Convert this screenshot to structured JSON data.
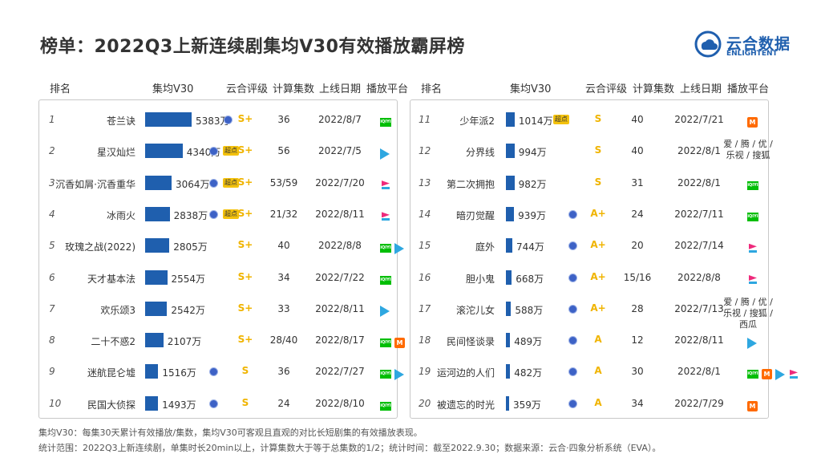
{
  "title": "榜单：2022Q3上新连续剧集均V30有效播放霸屏榜",
  "logo": {
    "cn": "云合数据",
    "en": "ENLIGHTENT"
  },
  "headers": {
    "rank": "排名",
    "v30": "集均V30",
    "grade": "云合评级",
    "episodes": "计算集数",
    "date": "上线日期",
    "platform": "播放平台"
  },
  "chart_data": {
    "type": "bar",
    "unit": "万",
    "colors": {
      "bar": "#1f5fae",
      "grade": "#f0b400",
      "net_badge": "#3d62c6",
      "chao_badge": "#f4c20d"
    },
    "rows": [
      {
        "rank": "1",
        "name": "苍兰诀",
        "value": 5383,
        "label": "5383万",
        "net": true,
        "chao": false,
        "grade": "S+",
        "episodes": "36",
        "date": "2022/8/7",
        "platforms": [
          "iqiyi"
        ]
      },
      {
        "rank": "2",
        "name": "星汉灿烂",
        "value": 4340,
        "label": "4340万",
        "net": true,
        "chao": true,
        "grade": "S+",
        "episodes": "56",
        "date": "2022/7/5",
        "platforms": [
          "tencent"
        ]
      },
      {
        "rank": "3",
        "name": "沉香如屑·沉香重华",
        "value": 3064,
        "label": "3064万",
        "net": true,
        "chao": true,
        "grade": "S+",
        "episodes": "53/59",
        "date": "2022/7/20",
        "platforms": [
          "youku"
        ]
      },
      {
        "rank": "4",
        "name": "冰雨火",
        "value": 2838,
        "label": "2838万",
        "net": true,
        "chao": true,
        "grade": "S+",
        "episodes": "21/32",
        "date": "2022/8/11",
        "platforms": [
          "youku"
        ]
      },
      {
        "rank": "5",
        "name": "玫瑰之战(2022)",
        "value": 2805,
        "label": "2805万",
        "net": false,
        "chao": false,
        "grade": "S+",
        "episodes": "40",
        "date": "2022/8/8",
        "platforms": [
          "iqiyi",
          "tencent"
        ]
      },
      {
        "rank": "6",
        "name": "天才基本法",
        "value": 2554,
        "label": "2554万",
        "net": false,
        "chao": false,
        "grade": "S+",
        "episodes": "34",
        "date": "2022/7/22",
        "platforms": [
          "iqiyi"
        ]
      },
      {
        "rank": "7",
        "name": "欢乐颂3",
        "value": 2542,
        "label": "2542万",
        "net": false,
        "chao": false,
        "grade": "S+",
        "episodes": "33",
        "date": "2022/8/11",
        "platforms": [
          "tencent"
        ]
      },
      {
        "rank": "8",
        "name": "二十不惑2",
        "value": 2107,
        "label": "2107万",
        "net": false,
        "chao": false,
        "grade": "S+",
        "episodes": "28/40",
        "date": "2022/8/17",
        "platforms": [
          "iqiyi",
          "mango"
        ]
      },
      {
        "rank": "9",
        "name": "迷航昆仑墟",
        "value": 1516,
        "label": "1516万",
        "net": true,
        "chao": false,
        "grade": "S",
        "episodes": "36",
        "date": "2022/7/27",
        "platforms": [
          "iqiyi",
          "tencent"
        ]
      },
      {
        "rank": "10",
        "name": "民国大侦探",
        "value": 1493,
        "label": "1493万",
        "net": true,
        "chao": false,
        "grade": "S",
        "episodes": "24",
        "date": "2022/8/10",
        "platforms": [
          "iqiyi"
        ]
      },
      {
        "rank": "11",
        "name": "少年派2",
        "value": 1014,
        "label": "1014万",
        "net": false,
        "chao": true,
        "grade": "S",
        "episodes": "40",
        "date": "2022/7/21",
        "platforms": [
          "mango"
        ]
      },
      {
        "rank": "12",
        "name": "分界线",
        "value": 994,
        "label": "994万",
        "net": false,
        "chao": false,
        "grade": "S",
        "episodes": "40",
        "date": "2022/8/1",
        "platforms_text": "爱 / 腾 / 优 / 乐视 / 搜狐"
      },
      {
        "rank": "13",
        "name": "第二次拥抱",
        "value": 982,
        "label": "982万",
        "net": false,
        "chao": false,
        "grade": "S",
        "episodes": "31",
        "date": "2022/8/1",
        "platforms": [
          "iqiyi"
        ]
      },
      {
        "rank": "14",
        "name": "暗刃觉醒",
        "value": 939,
        "label": "939万",
        "net": true,
        "chao": false,
        "grade": "A+",
        "episodes": "24",
        "date": "2022/7/11",
        "platforms": [
          "iqiyi"
        ]
      },
      {
        "rank": "15",
        "name": "庭外",
        "value": 744,
        "label": "744万",
        "net": true,
        "chao": false,
        "grade": "A+",
        "episodes": "20",
        "date": "2022/7/14",
        "platforms": [
          "youku"
        ]
      },
      {
        "rank": "16",
        "name": "胆小鬼",
        "value": 668,
        "label": "668万",
        "net": true,
        "chao": false,
        "grade": "A+",
        "episodes": "15/16",
        "date": "2022/8/8",
        "platforms": [
          "youku"
        ]
      },
      {
        "rank": "17",
        "name": "滚沱儿女",
        "value": 588,
        "label": "588万",
        "net": true,
        "chao": false,
        "grade": "A+",
        "episodes": "28",
        "date": "2022/7/13",
        "platforms_text": "爱 / 腾 / 优 / 乐视 / 搜狐 / 西瓜"
      },
      {
        "rank": "18",
        "name": "民间怪谈录",
        "value": 489,
        "label": "489万",
        "net": true,
        "chao": false,
        "grade": "A",
        "episodes": "12",
        "date": "2022/8/11",
        "platforms": [
          "tencent"
        ]
      },
      {
        "rank": "19",
        "name": "运河边的人们",
        "value": 482,
        "label": "482万",
        "net": true,
        "chao": false,
        "grade": "A",
        "episodes": "30",
        "date": "2022/8/1",
        "platforms": [
          "iqiyi",
          "mango",
          "tencent",
          "youku"
        ]
      },
      {
        "rank": "20",
        "name": "被遗忘的时光",
        "value": 359,
        "label": "359万",
        "net": true,
        "chao": false,
        "grade": "A",
        "episodes": "34",
        "date": "2022/7/29",
        "platforms": [
          "mango"
        ]
      }
    ]
  },
  "badges": {
    "net": "网",
    "chao": "超点",
    "iqiyi": "iQIYI",
    "mango": "M"
  },
  "notes": {
    "line1": "集均V30：每集30天累计有效播放/集数，集均V30可客观且直观的对比长短剧集的有效播放表现。",
    "line2": "统计范围：2022Q3上新连续剧，单集时长20min以上，计算集数大于等于总集数的1/2；统计时间：截至2022.9.30；数据来源：云合·四象分析系统（EVA）。"
  }
}
